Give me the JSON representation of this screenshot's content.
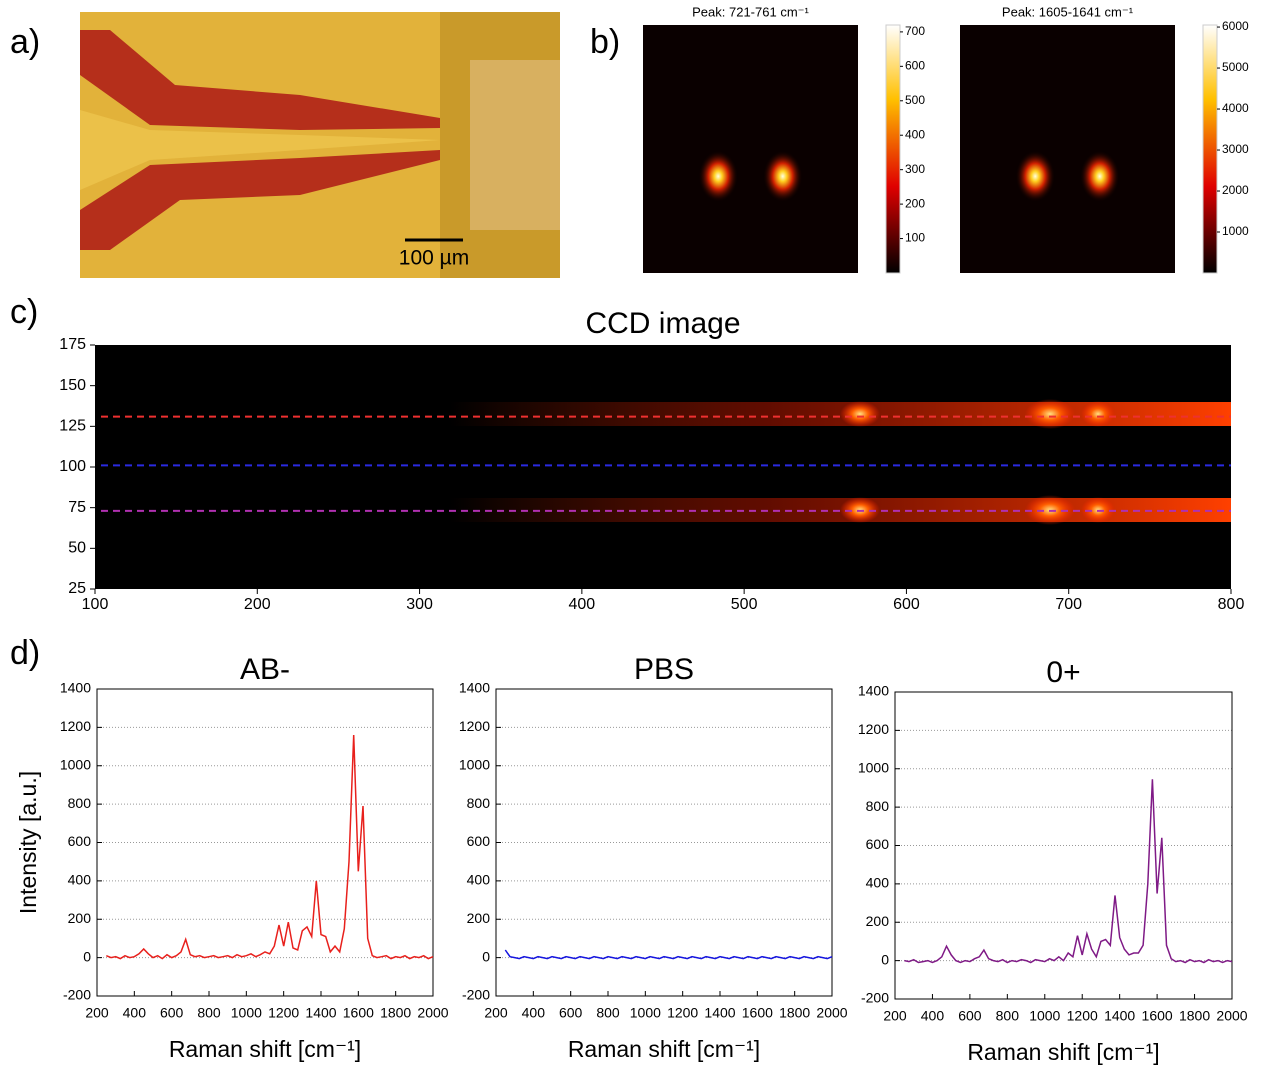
{
  "panel_labels": [
    "a)",
    "b)",
    "c)",
    "d)"
  ],
  "panel_a": {
    "scale_bar": "100 µm"
  },
  "chart_data": [
    {
      "type": "heatmap",
      "title": "Peak: 721-761 cm⁻¹",
      "clim": [
        0,
        720
      ],
      "cticks": [
        100,
        200,
        300,
        400,
        500,
        600,
        700
      ]
    },
    {
      "type": "heatmap",
      "title": "Peak: 1605-1641 cm⁻¹",
      "clim": [
        0,
        6050
      ],
      "cticks": [
        1000,
        2000,
        3000,
        4000,
        5000,
        6000
      ]
    },
    {
      "type": "image",
      "title": "CCD image",
      "xlim": [
        100,
        800
      ],
      "ylim": [
        25,
        175
      ],
      "xticks": [
        100,
        200,
        300,
        400,
        500,
        600,
        700,
        800
      ],
      "yticks": [
        25,
        50,
        75,
        100,
        125,
        150,
        175
      ],
      "hlines": [
        {
          "y": 131,
          "color": "#ee3030"
        },
        {
          "y": 101,
          "color": "#2a2ae0"
        },
        {
          "y": 73,
          "color": "#b030b0"
        }
      ]
    },
    {
      "type": "line",
      "title": "AB-",
      "xlabel": "Raman shift [cm⁻¹]",
      "ylabel": "Intensity [a.u.]",
      "xlim": [
        200,
        2000
      ],
      "ylim": [
        -200,
        1400
      ],
      "xticks": [
        200,
        400,
        600,
        800,
        1000,
        1200,
        1400,
        1600,
        1800,
        2000
      ],
      "yticks": [
        -200,
        0,
        200,
        400,
        600,
        800,
        1000,
        1200,
        1400
      ],
      "grid": true,
      "x": [
        250,
        275,
        300,
        325,
        350,
        375,
        400,
        425,
        450,
        475,
        500,
        525,
        550,
        575,
        600,
        625,
        650,
        675,
        700,
        725,
        750,
        775,
        800,
        825,
        850,
        875,
        900,
        925,
        950,
        975,
        1000,
        1025,
        1050,
        1075,
        1100,
        1125,
        1150,
        1175,
        1200,
        1225,
        1250,
        1275,
        1300,
        1325,
        1350,
        1375,
        1400,
        1425,
        1450,
        1475,
        1500,
        1525,
        1550,
        1575,
        1600,
        1625,
        1650,
        1675,
        1700,
        1725,
        1750,
        1775,
        1800,
        1825,
        1850,
        1875,
        1900,
        1925,
        1950,
        1975,
        2000
      ],
      "series": [
        {
          "color": "#e8201c",
          "values": [
            10,
            0,
            5,
            -5,
            10,
            0,
            5,
            20,
            45,
            20,
            0,
            10,
            -5,
            15,
            0,
            10,
            30,
            95,
            15,
            5,
            10,
            0,
            5,
            10,
            0,
            5,
            10,
            0,
            15,
            5,
            10,
            20,
            5,
            15,
            30,
            20,
            60,
            170,
            60,
            185,
            50,
            40,
            140,
            160,
            110,
            400,
            120,
            110,
            30,
            60,
            30,
            150,
            500,
            1160,
            450,
            790,
            100,
            10,
            0,
            5,
            10,
            -5,
            5,
            0,
            10,
            -5,
            5,
            0,
            10,
            -5,
            5
          ]
        }
      ]
    },
    {
      "type": "line",
      "title": "PBS",
      "xlabel": "Raman shift [cm⁻¹]",
      "xlim": [
        200,
        2000
      ],
      "ylim": [
        -200,
        1400
      ],
      "xticks": [
        200,
        400,
        600,
        800,
        1000,
        1200,
        1400,
        1600,
        1800,
        2000
      ],
      "yticks": [
        -200,
        0,
        200,
        400,
        600,
        800,
        1000,
        1200,
        1400
      ],
      "grid": true,
      "x": [
        250,
        275,
        300,
        325,
        350,
        375,
        400,
        425,
        450,
        475,
        500,
        525,
        550,
        575,
        600,
        625,
        650,
        675,
        700,
        725,
        750,
        775,
        800,
        825,
        850,
        875,
        900,
        925,
        950,
        975,
        1000,
        1025,
        1050,
        1075,
        1100,
        1125,
        1150,
        1175,
        1200,
        1225,
        1250,
        1275,
        1300,
        1325,
        1350,
        1375,
        1400,
        1425,
        1450,
        1475,
        1500,
        1525,
        1550,
        1575,
        1600,
        1625,
        1650,
        1675,
        1700,
        1725,
        1750,
        1775,
        1800,
        1825,
        1850,
        1875,
        1900,
        1925,
        1950,
        1975,
        2000
      ],
      "series": [
        {
          "color": "#1515e0",
          "values": [
            40,
            5,
            0,
            -5,
            5,
            0,
            -5,
            5,
            0,
            -5,
            5,
            0,
            -5,
            5,
            0,
            -5,
            5,
            0,
            -5,
            5,
            0,
            -5,
            5,
            0,
            -5,
            5,
            0,
            -5,
            5,
            0,
            -5,
            5,
            0,
            -5,
            5,
            0,
            -5,
            5,
            0,
            -5,
            5,
            0,
            -5,
            5,
            0,
            -5,
            5,
            0,
            -5,
            5,
            0,
            -5,
            5,
            0,
            -5,
            5,
            0,
            -5,
            5,
            0,
            -5,
            5,
            0,
            -5,
            5,
            0,
            -5,
            5,
            0,
            -5,
            5
          ]
        }
      ]
    },
    {
      "type": "line",
      "title": "0+",
      "xlabel": "Raman shift [cm⁻¹]",
      "xlim": [
        200,
        2000
      ],
      "ylim": [
        -200,
        1400
      ],
      "xticks": [
        200,
        400,
        600,
        800,
        1000,
        1200,
        1400,
        1600,
        1800,
        2000
      ],
      "yticks": [
        -200,
        0,
        200,
        400,
        600,
        800,
        1000,
        1200,
        1400
      ],
      "grid": true,
      "x": [
        250,
        275,
        300,
        325,
        350,
        375,
        400,
        425,
        450,
        475,
        500,
        525,
        550,
        575,
        600,
        625,
        650,
        675,
        700,
        725,
        750,
        775,
        800,
        825,
        850,
        875,
        900,
        925,
        950,
        975,
        1000,
        1025,
        1050,
        1075,
        1100,
        1125,
        1150,
        1175,
        1200,
        1225,
        1250,
        1275,
        1300,
        1325,
        1350,
        1375,
        1400,
        1425,
        1450,
        1475,
        1500,
        1525,
        1550,
        1575,
        1600,
        1625,
        1650,
        1675,
        1700,
        1725,
        1750,
        1775,
        1800,
        1825,
        1850,
        1875,
        1900,
        1925,
        1950,
        1975,
        2000
      ],
      "series": [
        {
          "color": "#7f1a86",
          "values": [
            0,
            -5,
            5,
            -10,
            -5,
            0,
            -10,
            0,
            20,
            75,
            30,
            0,
            -10,
            0,
            -5,
            10,
            20,
            55,
            10,
            0,
            -5,
            5,
            -10,
            0,
            -5,
            5,
            0,
            -10,
            5,
            0,
            -5,
            10,
            0,
            20,
            0,
            40,
            20,
            130,
            30,
            140,
            60,
            20,
            100,
            110,
            80,
            340,
            120,
            60,
            30,
            40,
            40,
            80,
            400,
            945,
            350,
            640,
            80,
            10,
            -5,
            0,
            -10,
            5,
            -5,
            0,
            -10,
            5,
            -5,
            0,
            -10,
            0,
            -5
          ]
        }
      ]
    }
  ]
}
